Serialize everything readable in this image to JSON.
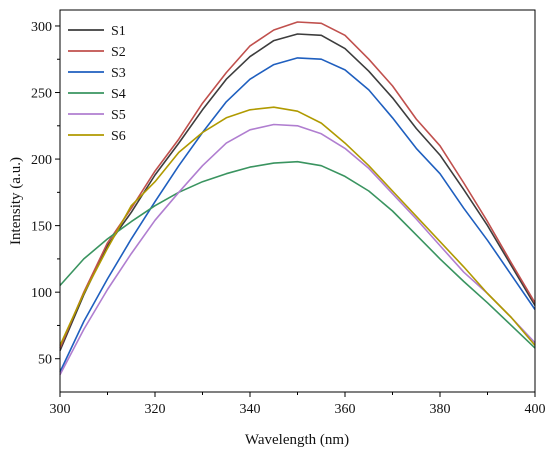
{
  "chart_data": {
    "type": "line",
    "title": "",
    "xlabel": "Wavelength (nm)",
    "ylabel": "Intensity (a.u.)",
    "xlim": [
      300,
      400
    ],
    "ylim": [
      25,
      312
    ],
    "xticks": [
      300,
      320,
      340,
      360,
      380,
      400
    ],
    "yticks": [
      50,
      100,
      150,
      200,
      250,
      300
    ],
    "grid": false,
    "legend_position": "top-left",
    "x": [
      300,
      305,
      310,
      315,
      320,
      325,
      330,
      335,
      340,
      345,
      350,
      355,
      360,
      365,
      370,
      375,
      380,
      385,
      390,
      395,
      400
    ],
    "series": [
      {
        "name": "S1",
        "color": "#3d3d3d",
        "values": [
          56,
          98,
          135,
          160,
          188,
          212,
          237,
          260,
          277,
          289,
          294,
          293,
          283,
          266,
          246,
          223,
          203,
          177,
          150,
          120,
          90
        ]
      },
      {
        "name": "S2",
        "color": "#c0504d",
        "values": [
          58,
          100,
          137,
          163,
          191,
          215,
          242,
          265,
          285,
          297,
          303,
          302,
          293,
          275,
          255,
          230,
          210,
          182,
          153,
          122,
          92
        ]
      },
      {
        "name": "S3",
        "color": "#1f5fbf",
        "values": [
          40,
          78,
          110,
          140,
          168,
          195,
          220,
          243,
          260,
          271,
          276,
          275,
          267,
          252,
          231,
          208,
          189,
          163,
          139,
          113,
          87
        ]
      },
      {
        "name": "S4",
        "color": "#3a9460",
        "values": [
          105,
          125,
          140,
          153,
          165,
          175,
          183,
          189,
          194,
          197,
          198,
          195,
          187,
          176,
          161,
          143,
          125,
          108,
          92,
          75,
          58
        ]
      },
      {
        "name": "S5",
        "color": "#b07ed0",
        "values": [
          38,
          72,
          102,
          129,
          154,
          175,
          195,
          212,
          222,
          226,
          225,
          219,
          208,
          193,
          174,
          155,
          135,
          115,
          99,
          81,
          62
        ]
      },
      {
        "name": "S6",
        "color": "#b09a00",
        "values": [
          60,
          99,
          133,
          165,
          183,
          205,
          220,
          231,
          237,
          239,
          236,
          227,
          212,
          195,
          176,
          157,
          138,
          119,
          99,
          81,
          60
        ]
      }
    ]
  }
}
